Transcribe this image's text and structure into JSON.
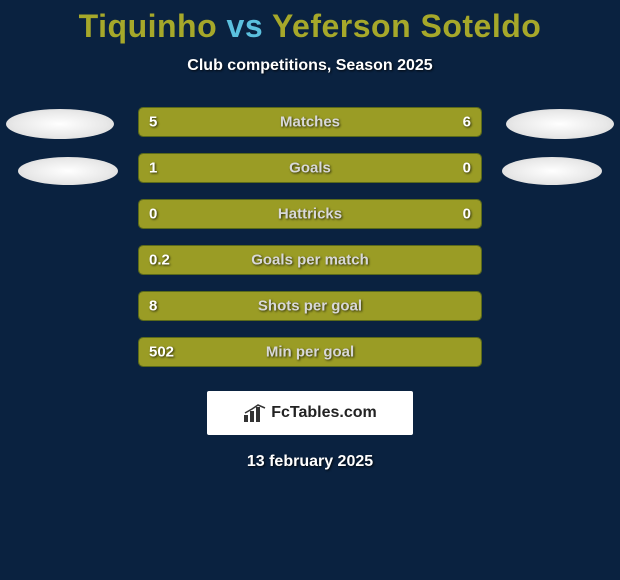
{
  "title": {
    "player1": "Tiquinho",
    "vs": "vs",
    "player2": "Yeferson Soteldo",
    "player1_color": "#a6a82a",
    "vs_color": "#5bc0de",
    "player2_color": "#a6a82a"
  },
  "subtitle": "Club competitions, Season 2025",
  "background_color": "#0a2240",
  "bar_color": "#9a9c25",
  "stats": [
    {
      "label": "Matches",
      "left_value": "5",
      "right_value": "6",
      "left_pct": 45,
      "right_pct": 55
    },
    {
      "label": "Goals",
      "left_value": "1",
      "right_value": "0",
      "left_pct": 78,
      "right_pct": 22
    },
    {
      "label": "Hattricks",
      "left_value": "0",
      "right_value": "0",
      "left_pct": 0,
      "right_pct": 0,
      "full": true
    },
    {
      "label": "Goals per match",
      "left_value": "0.2",
      "right_value": "",
      "left_pct": 0,
      "right_pct": 0,
      "full": true
    },
    {
      "label": "Shots per goal",
      "left_value": "8",
      "right_value": "",
      "left_pct": 0,
      "right_pct": 0,
      "full": true
    },
    {
      "label": "Min per goal",
      "left_value": "502",
      "right_value": "",
      "left_pct": 0,
      "right_pct": 0,
      "full": true
    }
  ],
  "logo": {
    "text": "FcTables.com"
  },
  "date": "13 february 2025"
}
